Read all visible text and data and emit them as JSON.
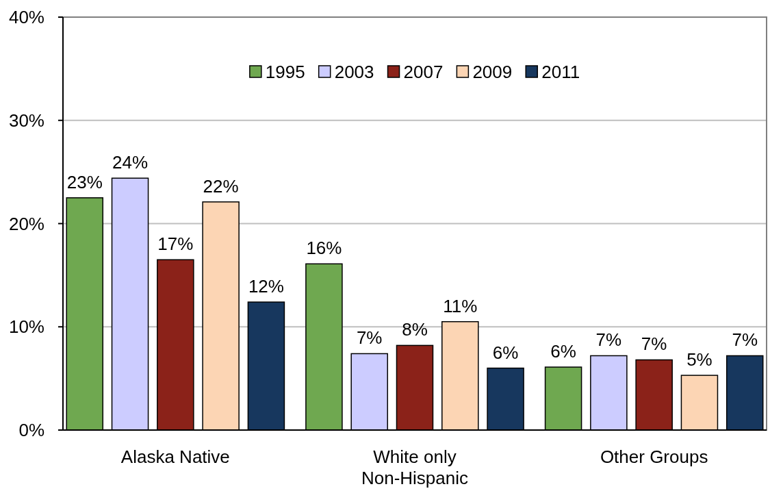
{
  "chart_data": {
    "type": "bar",
    "categories": [
      "Alaska Native",
      "White only\nNon-Hispanic",
      "Other Groups"
    ],
    "series": [
      {
        "name": "1995",
        "color": "#6fa850",
        "values": [
          22.5,
          16.1,
          6.1
        ],
        "value_labels": [
          "23%",
          "16%",
          "6%"
        ]
      },
      {
        "name": "2003",
        "color": "#ccccff",
        "values": [
          24.4,
          7.4,
          7.2
        ],
        "value_labels": [
          "24%",
          "7%",
          "7%"
        ]
      },
      {
        "name": "2007",
        "color": "#8b2219",
        "values": [
          16.5,
          8.2,
          6.8
        ],
        "value_labels": [
          "17%",
          "8%",
          "7%"
        ]
      },
      {
        "name": "2009",
        "color": "#fcd5b4",
        "values": [
          22.1,
          10.5,
          5.3
        ],
        "value_labels": [
          "22%",
          "11%",
          "5%"
        ]
      },
      {
        "name": "2011",
        "color": "#17375e",
        "values": [
          12.4,
          6.0,
          7.2
        ],
        "value_labels": [
          "12%",
          "6%",
          "7%"
        ]
      }
    ],
    "ylim": [
      0,
      40
    ],
    "yticks": [
      {
        "value": 0,
        "label": "0%"
      },
      {
        "value": 10,
        "label": "10%"
      },
      {
        "value": 20,
        "label": "20%"
      },
      {
        "value": 30,
        "label": "30%"
      },
      {
        "value": 40,
        "label": "40%"
      }
    ],
    "grid": "y",
    "legend": "top"
  }
}
